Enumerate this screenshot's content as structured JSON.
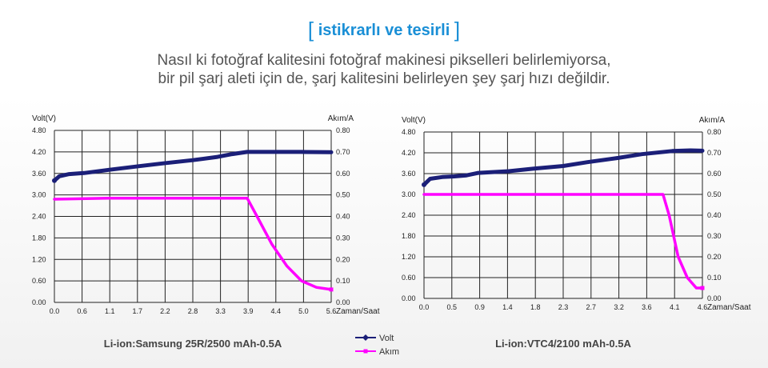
{
  "heading": "istikrarlı ve tesirli",
  "subtitle_lines": [
    "Nasıl ki fotoğraf kalitesini fotoğraf makinesi pikselleri belirlemiyorsa,",
    "bir pil şarj aleti için de, şarj kalitesini belirleyen şey şarj hızı değildir."
  ],
  "colors": {
    "volt": "#1b1f78",
    "akim": "#ff00ff",
    "heading": "#1a8fd6",
    "grid": "#222222"
  },
  "legend": {
    "volt": "Volt",
    "akim": "Akım"
  },
  "chart_data": [
    {
      "type": "line",
      "caption": "Li-ion:Samsung 25R/2500 mAh-0.5A",
      "ylabel_left": "Volt(V)",
      "ylabel_right": "Akım/A",
      "xlabel": "Zaman/Saat",
      "x_ticks": [
        "0.0",
        "0.6",
        "1.1",
        "1.7",
        "2.2",
        "2.8",
        "3.3",
        "3.9",
        "4.4",
        "5.0",
        "5.6"
      ],
      "y_left_ticks": [
        "4.80",
        "4.20",
        "3.60",
        "3.00",
        "2.40",
        "1.80",
        "1.20",
        "0.60",
        "0.00"
      ],
      "y_right_ticks": [
        "0.80",
        "0.70",
        "0.60",
        "0.50",
        "0.40",
        "0.30",
        "0.20",
        "0.10",
        "0.00"
      ],
      "xlim": [
        0,
        5.6
      ],
      "ylim_left": [
        0,
        4.8
      ],
      "ylim_right": [
        0,
        0.8
      ],
      "grid": true,
      "legend_position": "bottom-right",
      "series": [
        {
          "name": "Volt",
          "axis": "left",
          "x": [
            0.0,
            0.1,
            0.3,
            0.6,
            1.1,
            1.7,
            2.2,
            2.8,
            3.3,
            3.6,
            3.9,
            4.4,
            5.0,
            5.6
          ],
          "y": [
            3.4,
            3.52,
            3.58,
            3.61,
            3.7,
            3.8,
            3.88,
            3.97,
            4.06,
            4.14,
            4.2,
            4.2,
            4.2,
            4.19
          ]
        },
        {
          "name": "Akım",
          "axis": "right",
          "x": [
            0.0,
            1.1,
            2.2,
            3.3,
            3.9,
            4.1,
            4.4,
            4.7,
            5.0,
            5.3,
            5.6
          ],
          "y": [
            0.48,
            0.485,
            0.485,
            0.485,
            0.485,
            0.4,
            0.27,
            0.17,
            0.1,
            0.07,
            0.06
          ]
        }
      ]
    },
    {
      "type": "line",
      "caption": "Li-ion:VTC4/2100 mAh-0.5A",
      "ylabel_left": "Volt(V)",
      "ylabel_right": "Akım/A",
      "xlabel": "Zaman/Saat",
      "x_ticks": [
        "0.0",
        "0.5",
        "0.9",
        "1.4",
        "1.8",
        "2.3",
        "2.7",
        "3.2",
        "3.6",
        "4.1",
        "4.6"
      ],
      "y_left_ticks": [
        "4.80",
        "4.20",
        "3.60",
        "3.00",
        "2.40",
        "1.80",
        "1.20",
        "0.60",
        "0.00"
      ],
      "y_right_ticks": [
        "0.80",
        "0.70",
        "0.60",
        "0.50",
        "0.40",
        "0.30",
        "0.20",
        "0.10",
        "0.00"
      ],
      "xlim": [
        0,
        4.6
      ],
      "ylim_left": [
        0,
        4.8
      ],
      "ylim_right": [
        0,
        0.8
      ],
      "grid": true,
      "legend_position": "bottom-left",
      "series": [
        {
          "name": "Volt",
          "axis": "left",
          "x": [
            0.0,
            0.1,
            0.3,
            0.5,
            0.7,
            0.9,
            1.4,
            1.8,
            2.3,
            2.7,
            3.2,
            3.6,
            4.1,
            4.4,
            4.6
          ],
          "y": [
            3.28,
            3.45,
            3.5,
            3.52,
            3.55,
            3.62,
            3.67,
            3.74,
            3.82,
            3.93,
            4.05,
            4.16,
            4.25,
            4.27,
            4.26
          ]
        },
        {
          "name": "Akım",
          "axis": "right",
          "x": [
            0.0,
            0.9,
            1.8,
            2.7,
            3.6,
            3.95,
            4.05,
            4.2,
            4.35,
            4.5,
            4.6
          ],
          "y": [
            0.5,
            0.5,
            0.5,
            0.5,
            0.5,
            0.5,
            0.4,
            0.2,
            0.1,
            0.05,
            0.05
          ]
        }
      ]
    }
  ]
}
